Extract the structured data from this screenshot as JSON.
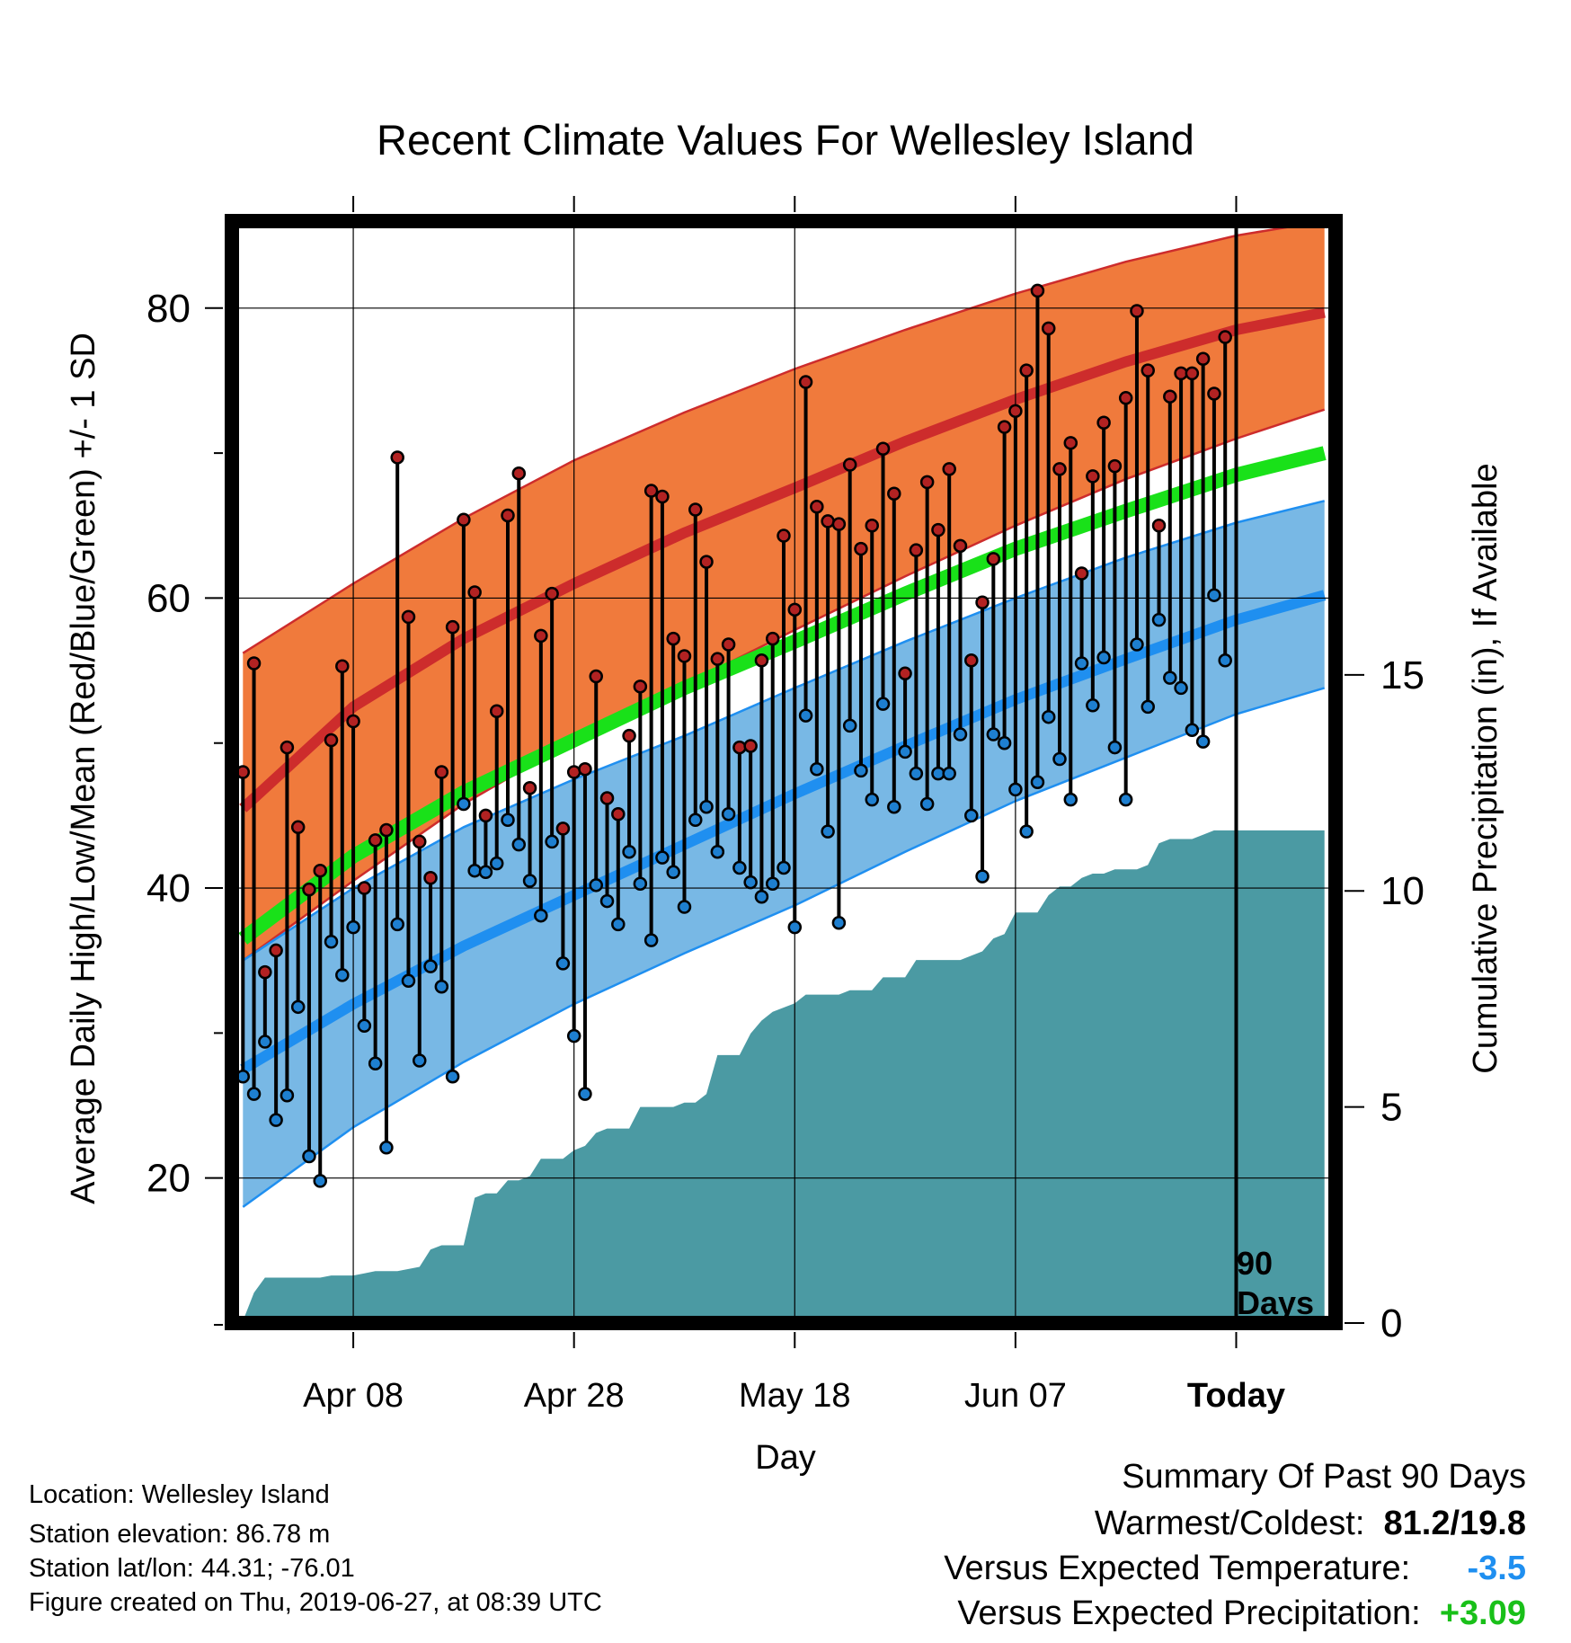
{
  "chart_data": {
    "type": "line",
    "title": "Recent Climate Values For Wellesley Island",
    "xlabel": "Day",
    "ylabel_left": "Average Daily High/Low/Mean (Red/Blue/Green) +/- 1 SD",
    "ylabel_right": "Cumulative Precipitation (in), If Available",
    "x_ticks": [
      {
        "day": 10,
        "label": "Apr 08"
      },
      {
        "day": 30,
        "label": "Apr 28"
      },
      {
        "day": 50,
        "label": "May 18"
      },
      {
        "day": 70,
        "label": "Jun 07"
      },
      {
        "day": 90,
        "label": "Today"
      }
    ],
    "xlim": [
      -1,
      99
    ],
    "ylim_left": [
      10,
      86
    ],
    "y_ticks_left": [
      20,
      40,
      60,
      80
    ],
    "ylim_right": [
      0,
      25.5
    ],
    "y_ticks_right": [
      0,
      5,
      10,
      15
    ],
    "today_day": 90,
    "today_label_lines": [
      "90",
      "Days"
    ],
    "normals": {
      "days": [
        0,
        10,
        20,
        30,
        40,
        50,
        60,
        70,
        80,
        90,
        98
      ],
      "high_mean": [
        45.5,
        52.5,
        57.2,
        61.0,
        64.5,
        67.6,
        70.8,
        73.7,
        76.3,
        78.5,
        79.7
      ],
      "high_plus_sd": [
        56.2,
        61.0,
        65.5,
        69.5,
        72.8,
        75.8,
        78.5,
        81.0,
        83.2,
        85.0,
        86.0
      ],
      "high_minus_sd": [
        35.0,
        40.5,
        45.8,
        50.2,
        54.0,
        57.8,
        61.5,
        65.0,
        68.2,
        71.0,
        73.0
      ],
      "low_mean": [
        27.5,
        32.0,
        36.0,
        39.5,
        43.0,
        46.5,
        49.8,
        53.0,
        55.8,
        58.5,
        60.2
      ],
      "low_plus_sd": [
        35.0,
        40.0,
        44.2,
        47.5,
        50.5,
        53.8,
        57.0,
        60.0,
        62.8,
        65.2,
        66.7
      ],
      "low_minus_sd": [
        18.0,
        23.5,
        28.0,
        32.0,
        35.5,
        38.8,
        42.5,
        46.0,
        49.0,
        52.0,
        53.8
      ],
      "mean": [
        36.5,
        42.2,
        46.6,
        50.2,
        53.8,
        57.0,
        60.3,
        63.4,
        66.0,
        68.5,
        70.0
      ]
    },
    "series": [
      {
        "name": "High",
        "days": [
          0,
          1,
          2,
          3,
          4,
          5,
          6,
          7,
          8,
          9,
          10,
          11,
          12,
          13,
          14,
          15,
          16,
          17,
          18,
          19,
          20,
          21,
          22,
          23,
          24,
          25,
          26,
          27,
          28,
          29,
          30,
          31,
          32,
          33,
          34,
          35,
          36,
          37,
          38,
          39,
          40,
          41,
          42,
          43,
          44,
          45,
          46,
          47,
          48,
          49,
          50,
          51,
          52,
          53,
          54,
          55,
          56,
          57,
          58,
          59,
          60,
          61,
          62,
          63,
          64,
          65,
          66,
          67,
          68,
          69,
          70,
          71,
          72,
          73,
          74,
          75,
          76,
          77,
          78,
          79,
          80,
          81,
          82,
          83,
          84,
          85,
          86,
          87,
          88,
          89
        ],
        "values": [
          48,
          55.5,
          34.2,
          35.7,
          49.7,
          44.2,
          39.9,
          41.2,
          50.2,
          55.3,
          51.5,
          40,
          43.3,
          44,
          69.7,
          58.7,
          43.2,
          40.7,
          48,
          58,
          65.4,
          60.4,
          45,
          52.2,
          65.7,
          68.6,
          46.9,
          57.4,
          60.3,
          44.1,
          48,
          48.2,
          54.6,
          46.2,
          45.1,
          50.5,
          53.9,
          67.4,
          67,
          57.2,
          56,
          66.1,
          62.5,
          55.8,
          56.8,
          49.7,
          49.8,
          55.7,
          57.2,
          64.3,
          59.2,
          74.9,
          66.3,
          65.3,
          65.1,
          69.2,
          63.4,
          65,
          70.3,
          67.2,
          54.8,
          63.3,
          68,
          64.7,
          68.9,
          63.6,
          55.7,
          59.7,
          62.7,
          71.8,
          72.9,
          75.7,
          81.2,
          78.6,
          68.9,
          70.7,
          61.7,
          68.4,
          72.1,
          69.1,
          73.8,
          79.8,
          75.7,
          65,
          73.9,
          75.5,
          75.5,
          76.5,
          74.1,
          78
        ]
      },
      {
        "name": "Low",
        "days": [
          0,
          1,
          2,
          3,
          4,
          5,
          6,
          7,
          8,
          9,
          10,
          11,
          12,
          13,
          14,
          15,
          16,
          17,
          18,
          19,
          20,
          21,
          22,
          23,
          24,
          25,
          26,
          27,
          28,
          29,
          30,
          31,
          32,
          33,
          34,
          35,
          36,
          37,
          38,
          39,
          40,
          41,
          42,
          43,
          44,
          45,
          46,
          47,
          48,
          49,
          50,
          51,
          52,
          53,
          54,
          55,
          56,
          57,
          58,
          59,
          60,
          61,
          62,
          63,
          64,
          65,
          66,
          67,
          68,
          69,
          70,
          71,
          72,
          73,
          74,
          75,
          76,
          77,
          78,
          79,
          80,
          81,
          82,
          83,
          84,
          85,
          86,
          87,
          88,
          89
        ],
        "values": [
          27,
          25.8,
          29.4,
          24,
          25.7,
          31.8,
          21.5,
          19.8,
          36.3,
          34,
          37.3,
          30.5,
          27.9,
          22.1,
          37.5,
          33.6,
          28.1,
          34.6,
          33.2,
          27,
          45.8,
          41.2,
          41.1,
          41.7,
          44.7,
          43,
          40.5,
          38.1,
          43.2,
          34.8,
          29.8,
          25.8,
          40.2,
          39.1,
          37.5,
          42.5,
          40.3,
          36.4,
          42.1,
          41.1,
          38.7,
          44.7,
          45.6,
          42.5,
          45.1,
          41.4,
          40.4,
          39.4,
          40.3,
          41.4,
          37.3,
          51.9,
          48.2,
          43.9,
          37.6,
          51.2,
          48.1,
          46.1,
          52.7,
          45.6,
          49.4,
          47.9,
          45.8,
          47.9,
          47.9,
          50.6,
          45,
          40.8,
          50.6,
          50,
          46.8,
          43.9,
          47.3,
          51.8,
          48.9,
          46.1,
          55.5,
          52.6,
          55.9,
          49.7,
          46.1,
          56.8,
          52.5,
          58.5,
          54.5,
          53.8,
          50.9,
          50.1,
          60.2,
          55.7
        ]
      },
      {
        "name": "Cumulative Precipitation",
        "days": [
          0,
          1,
          2,
          3,
          4,
          5,
          6,
          7,
          8,
          9,
          10,
          11,
          12,
          13,
          14,
          15,
          16,
          17,
          18,
          19,
          20,
          21,
          22,
          23,
          24,
          25,
          26,
          27,
          28,
          29,
          30,
          31,
          32,
          33,
          34,
          35,
          36,
          37,
          38,
          39,
          40,
          41,
          42,
          43,
          44,
          45,
          46,
          47,
          48,
          49,
          50,
          51,
          52,
          53,
          54,
          55,
          56,
          57,
          58,
          59,
          60,
          61,
          62,
          63,
          64,
          65,
          66,
          67,
          68,
          69,
          70,
          71,
          72,
          73,
          74,
          75,
          76,
          77,
          78,
          79,
          80,
          81,
          82,
          83,
          84,
          85,
          86,
          87,
          88,
          89,
          90,
          91,
          92,
          93,
          94,
          95,
          96,
          97,
          98
        ],
        "values": [
          0.05,
          0.7,
          1.05,
          1.05,
          1.05,
          1.05,
          1.05,
          1.05,
          1.1,
          1.1,
          1.1,
          1.15,
          1.2,
          1.2,
          1.2,
          1.25,
          1.3,
          1.7,
          1.8,
          1.8,
          1.8,
          2.9,
          3.0,
          3.0,
          3.3,
          3.3,
          3.4,
          3.8,
          3.8,
          3.8,
          4.0,
          4.1,
          4.4,
          4.5,
          4.5,
          4.5,
          5.0,
          5.0,
          5.0,
          5.0,
          5.1,
          5.1,
          5.3,
          6.2,
          6.2,
          6.2,
          6.7,
          7.0,
          7.2,
          7.3,
          7.4,
          7.6,
          7.6,
          7.6,
          7.6,
          7.7,
          7.7,
          7.7,
          8.0,
          8.0,
          8.0,
          8.4,
          8.4,
          8.4,
          8.4,
          8.4,
          8.5,
          8.6,
          8.9,
          9.0,
          9.5,
          9.5,
          9.5,
          9.9,
          10.1,
          10.1,
          10.3,
          10.4,
          10.4,
          10.5,
          10.5,
          10.5,
          10.6,
          11.1,
          11.2,
          11.2,
          11.2,
          11.3,
          11.4,
          11.4,
          11.4,
          11.4,
          11.4,
          11.4,
          11.4,
          11.4,
          11.4,
          11.4,
          11.4
        ]
      }
    ],
    "colors": {
      "high_band": "#f07a3c",
      "high_mean": "#cd2c2c",
      "low_band": "#78b8e5",
      "low_mean": "#1f8ff0",
      "mean": "#19e119",
      "precip": "#4b9aa3",
      "high_point": "#b22222",
      "low_point": "#1e7fd0"
    }
  },
  "station_info": {
    "location": "Location: Wellesley Island",
    "elevation": "Station elevation: 86.78 m",
    "latlon": "Station lat/lon: 44.31; -76.01",
    "created": "Figure created on Thu, 2019-06-27, at 08:39 UTC"
  },
  "summary": {
    "title": "Summary Of Past 90 Days",
    "warm_cold_label": "Warmest/Coldest:",
    "warm_cold_value": "81.2/19.8",
    "temp_label": "Versus Expected Temperature:",
    "temp_value": "-3.5",
    "temp_color": "#1f8ff0",
    "precip_label": "Versus Expected Precipitation:",
    "precip_value": "+3.09",
    "precip_color": "#19c019"
  }
}
